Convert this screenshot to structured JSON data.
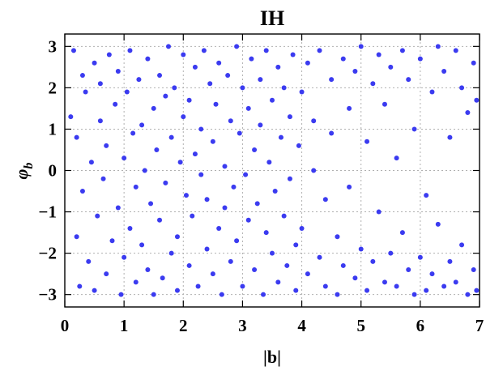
{
  "chart_data": {
    "type": "scatter",
    "title": "IH",
    "xlabel": "|b|",
    "ylabel": "φ_b",
    "ylabel_main": "φ",
    "ylabel_sub": "b",
    "xlim": [
      0,
      7
    ],
    "ylim": [
      -3.3,
      3.3
    ],
    "xticks": [
      0,
      1,
      2,
      3,
      4,
      5,
      6,
      7
    ],
    "xtick_labels": [
      "0",
      "1",
      "2",
      "3",
      "4",
      "5",
      "6",
      "7"
    ],
    "yticks": [
      -3,
      -2,
      -1,
      0,
      1,
      2,
      3
    ],
    "ytick_labels": [
      "−3",
      "−2",
      "−1",
      "0",
      "1",
      "2",
      "3"
    ],
    "grid": true,
    "marker_color": "#3b3bf0",
    "series": [
      {
        "points": [
          [
            0.1,
            1.3
          ],
          [
            0.15,
            2.9
          ],
          [
            0.2,
            0.8
          ],
          [
            0.2,
            -1.6
          ],
          [
            0.25,
            -2.8
          ],
          [
            0.3,
            2.3
          ],
          [
            0.3,
            -0.5
          ],
          [
            0.35,
            1.9
          ],
          [
            0.4,
            -2.2
          ],
          [
            0.45,
            0.2
          ],
          [
            0.5,
            2.6
          ],
          [
            0.5,
            -2.9
          ],
          [
            0.55,
            -1.1
          ],
          [
            0.6,
            1.2
          ],
          [
            0.6,
            2.1
          ],
          [
            0.65,
            -0.2
          ],
          [
            0.7,
            -2.5
          ],
          [
            0.7,
            0.6
          ],
          [
            0.75,
            2.8
          ],
          [
            0.8,
            -1.7
          ],
          [
            0.85,
            1.6
          ],
          [
            0.9,
            -0.9
          ],
          [
            0.9,
            2.4
          ],
          [
            0.95,
            -3.0
          ],
          [
            1.0,
            0.3
          ],
          [
            1.0,
            -2.1
          ],
          [
            1.05,
            1.9
          ],
          [
            1.1,
            -1.4
          ],
          [
            1.1,
            2.9
          ],
          [
            1.15,
            0.9
          ],
          [
            1.2,
            -0.4
          ],
          [
            1.2,
            -2.7
          ],
          [
            1.25,
            2.2
          ],
          [
            1.3,
            1.1
          ],
          [
            1.3,
            -1.8
          ],
          [
            1.35,
            0.0
          ],
          [
            1.4,
            2.7
          ],
          [
            1.4,
            -2.4
          ],
          [
            1.45,
            -0.8
          ],
          [
            1.5,
            1.5
          ],
          [
            1.5,
            -3.0
          ],
          [
            1.55,
            0.5
          ],
          [
            1.6,
            2.3
          ],
          [
            1.6,
            -1.2
          ],
          [
            1.65,
            -2.6
          ],
          [
            1.7,
            1.8
          ],
          [
            1.7,
            -0.3
          ],
          [
            1.75,
            3.0
          ],
          [
            1.8,
            0.8
          ],
          [
            1.8,
            -2.0
          ],
          [
            1.85,
            2.0
          ],
          [
            1.9,
            -1.6
          ],
          [
            1.9,
            -2.9
          ],
          [
            1.95,
            0.2
          ],
          [
            2.0,
            1.3
          ],
          [
            2.0,
            2.8
          ],
          [
            2.05,
            -0.6
          ],
          [
            2.1,
            -2.3
          ],
          [
            2.1,
            1.7
          ],
          [
            2.15,
            -1.1
          ],
          [
            2.2,
            2.5
          ],
          [
            2.2,
            0.4
          ],
          [
            2.25,
            -2.8
          ],
          [
            2.3,
            -0.1
          ],
          [
            2.3,
            1.0
          ],
          [
            2.35,
            2.9
          ],
          [
            2.4,
            -1.9
          ],
          [
            2.4,
            -0.7
          ],
          [
            2.45,
            2.1
          ],
          [
            2.5,
            -2.5
          ],
          [
            2.5,
            0.7
          ],
          [
            2.55,
            1.6
          ],
          [
            2.6,
            -1.4
          ],
          [
            2.6,
            2.6
          ],
          [
            2.65,
            -3.0
          ],
          [
            2.7,
            0.1
          ],
          [
            2.7,
            -0.9
          ],
          [
            2.75,
            2.3
          ],
          [
            2.8,
            1.2
          ],
          [
            2.8,
            -2.2
          ],
          [
            2.85,
            -0.4
          ],
          [
            2.9,
            3.0
          ],
          [
            2.9,
            -1.7
          ],
          [
            2.95,
            0.9
          ],
          [
            3.0,
            2.0
          ],
          [
            3.0,
            -2.8
          ],
          [
            3.05,
            -0.1
          ],
          [
            3.1,
            1.5
          ],
          [
            3.1,
            -1.2
          ],
          [
            3.15,
            2.7
          ],
          [
            3.2,
            -2.4
          ],
          [
            3.2,
            0.5
          ],
          [
            3.25,
            -0.8
          ],
          [
            3.3,
            2.2
          ],
          [
            3.3,
            1.1
          ],
          [
            3.35,
            -3.0
          ],
          [
            3.4,
            -1.5
          ],
          [
            3.4,
            2.9
          ],
          [
            3.45,
            0.2
          ],
          [
            3.5,
            -2.0
          ],
          [
            3.5,
            1.7
          ],
          [
            3.55,
            -0.5
          ],
          [
            3.6,
            2.5
          ],
          [
            3.6,
            -2.7
          ],
          [
            3.65,
            0.8
          ],
          [
            3.7,
            -1.1
          ],
          [
            3.7,
            2.0
          ],
          [
            3.75,
            -2.3
          ],
          [
            3.8,
            1.3
          ],
          [
            3.8,
            -0.2
          ],
          [
            3.85,
            2.8
          ],
          [
            3.9,
            -1.8
          ],
          [
            3.9,
            -2.9
          ],
          [
            3.95,
            0.6
          ],
          [
            4.0,
            1.9
          ],
          [
            4.0,
            -1.4
          ],
          [
            4.1,
            2.6
          ],
          [
            4.1,
            -2.5
          ],
          [
            4.2,
            0.0
          ],
          [
            4.2,
            1.2
          ],
          [
            4.3,
            -2.1
          ],
          [
            4.3,
            2.9
          ],
          [
            4.4,
            -0.7
          ],
          [
            4.4,
            -2.8
          ],
          [
            4.5,
            2.2
          ],
          [
            4.5,
            0.9
          ],
          [
            4.6,
            -1.6
          ],
          [
            4.6,
            -3.0
          ],
          [
            4.7,
            2.7
          ],
          [
            4.7,
            -2.3
          ],
          [
            4.8,
            1.5
          ],
          [
            4.8,
            -0.4
          ],
          [
            4.9,
            -2.6
          ],
          [
            4.9,
            2.4
          ],
          [
            5.0,
            3.0
          ],
          [
            5.0,
            -1.9
          ],
          [
            5.1,
            0.7
          ],
          [
            5.1,
            -2.9
          ],
          [
            5.2,
            2.1
          ],
          [
            5.2,
            -2.2
          ],
          [
            5.3,
            -1.0
          ],
          [
            5.3,
            2.8
          ],
          [
            5.4,
            -2.7
          ],
          [
            5.4,
            1.6
          ],
          [
            5.5,
            -2.0
          ],
          [
            5.5,
            2.5
          ],
          [
            5.6,
            -2.8
          ],
          [
            5.6,
            0.3
          ],
          [
            5.7,
            2.9
          ],
          [
            5.7,
            -1.5
          ],
          [
            5.8,
            -2.4
          ],
          [
            5.8,
            2.2
          ],
          [
            5.9,
            -3.0
          ],
          [
            5.9,
            1.0
          ],
          [
            6.0,
            2.7
          ],
          [
            6.0,
            -2.1
          ],
          [
            6.1,
            -0.6
          ],
          [
            6.1,
            -2.9
          ],
          [
            6.2,
            1.9
          ],
          [
            6.2,
            -2.5
          ],
          [
            6.3,
            3.0
          ],
          [
            6.3,
            -1.3
          ],
          [
            6.4,
            -2.8
          ],
          [
            6.4,
            2.4
          ],
          [
            6.5,
            -2.2
          ],
          [
            6.5,
            0.8
          ],
          [
            6.6,
            2.9
          ],
          [
            6.6,
            -2.7
          ],
          [
            6.7,
            -1.8
          ],
          [
            6.7,
            2.0
          ],
          [
            6.8,
            -3.0
          ],
          [
            6.8,
            1.4
          ],
          [
            6.9,
            2.6
          ],
          [
            6.9,
            -2.4
          ],
          [
            6.95,
            1.7
          ],
          [
            6.95,
            -2.9
          ]
        ]
      }
    ]
  }
}
